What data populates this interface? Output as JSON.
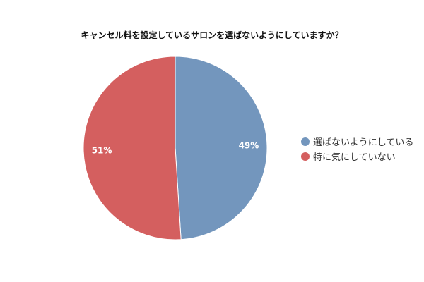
{
  "chart_data": {
    "type": "pie",
    "title": "キャンセル料を設定しているサロンを選ばないようにしていますか？",
    "slices": [
      {
        "name": "選ばないようにしている",
        "value": 49,
        "label": "49%",
        "color": "#7396bd"
      },
      {
        "name": "特に気にしていない",
        "value": 51,
        "label": "51%",
        "color": "#d45f5f"
      }
    ],
    "legend_placement": "right"
  }
}
